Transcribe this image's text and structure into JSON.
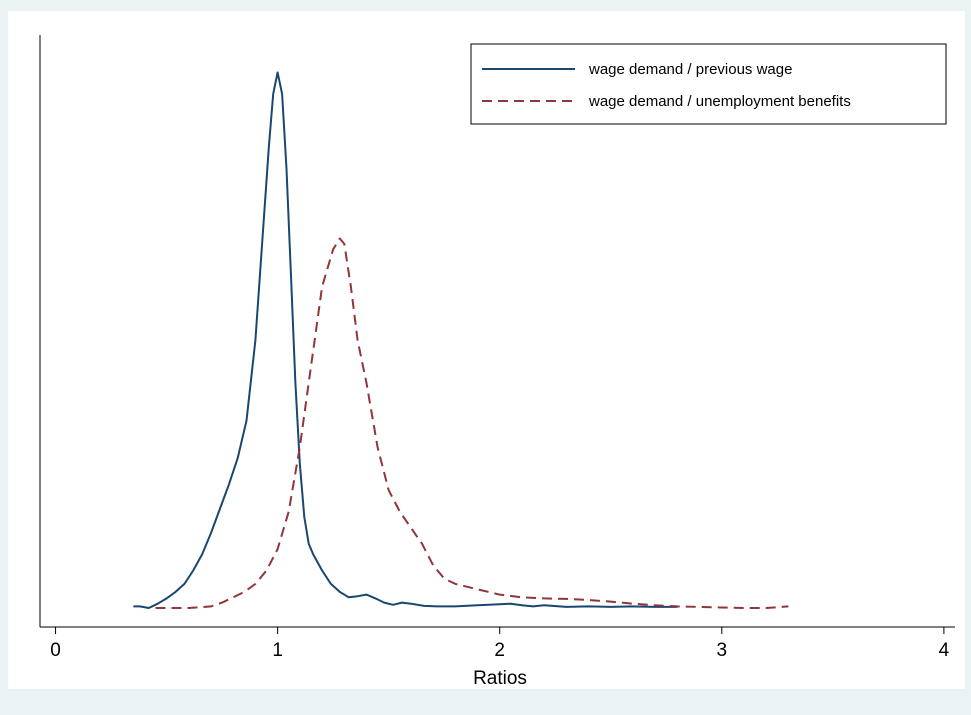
{
  "chart_data": {
    "type": "line",
    "title": "",
    "xlabel": "Ratios",
    "ylabel": "",
    "xlim": [
      -0.07,
      4.05
    ],
    "ylim": [
      0,
      1.07
    ],
    "x_ticks": [
      0,
      1,
      2,
      3,
      4
    ],
    "x_tick_labels": [
      "0",
      "1",
      "2",
      "3",
      "4"
    ],
    "y_axis_ticks_shown": false,
    "grid": false,
    "legend_position": "top-right",
    "colors": {
      "outer_background": "#eaf2f3",
      "plot_background": "#ffffff",
      "series_1": "#1a476f",
      "series_2": "#90353b"
    },
    "series": [
      {
        "name": "wage demand / previous wage",
        "line_style": "solid",
        "x": [
          0.35,
          0.38,
          0.42,
          0.46,
          0.5,
          0.54,
          0.58,
          0.62,
          0.66,
          0.7,
          0.74,
          0.78,
          0.82,
          0.86,
          0.9,
          0.93,
          0.96,
          0.98,
          1.0,
          1.02,
          1.04,
          1.06,
          1.08,
          1.1,
          1.12,
          1.14,
          1.16,
          1.2,
          1.24,
          1.28,
          1.32,
          1.36,
          1.4,
          1.44,
          1.48,
          1.52,
          1.56,
          1.6,
          1.66,
          1.72,
          1.8,
          1.9,
          2.0,
          2.05,
          2.1,
          2.15,
          2.2,
          2.3,
          2.4,
          2.5,
          2.6,
          2.7,
          2.8
        ],
        "y": [
          0.003,
          0.003,
          0.0,
          0.008,
          0.018,
          0.03,
          0.045,
          0.07,
          0.1,
          0.14,
          0.185,
          0.23,
          0.28,
          0.35,
          0.5,
          0.68,
          0.86,
          0.96,
          1.0,
          0.96,
          0.82,
          0.62,
          0.42,
          0.27,
          0.17,
          0.12,
          0.1,
          0.07,
          0.045,
          0.03,
          0.02,
          0.022,
          0.025,
          0.018,
          0.01,
          0.006,
          0.01,
          0.008,
          0.004,
          0.003,
          0.003,
          0.005,
          0.007,
          0.008,
          0.005,
          0.003,
          0.005,
          0.002,
          0.003,
          0.002,
          0.003,
          0.002,
          0.002
        ]
      },
      {
        "name": "wage demand / unemployment benefits",
        "line_style": "dashed",
        "x": [
          0.45,
          0.5,
          0.6,
          0.7,
          0.75,
          0.8,
          0.85,
          0.9,
          0.95,
          1.0,
          1.05,
          1.1,
          1.15,
          1.2,
          1.25,
          1.28,
          1.3,
          1.33,
          1.36,
          1.4,
          1.45,
          1.5,
          1.55,
          1.6,
          1.65,
          1.7,
          1.75,
          1.8,
          1.9,
          2.0,
          2.1,
          2.2,
          2.3,
          2.4,
          2.5,
          2.6,
          2.7,
          2.8,
          2.9,
          3.0,
          3.1,
          3.2,
          3.3
        ],
        "y": [
          0.0,
          0.0,
          0.0,
          0.003,
          0.01,
          0.02,
          0.03,
          0.045,
          0.07,
          0.11,
          0.18,
          0.3,
          0.45,
          0.6,
          0.67,
          0.69,
          0.68,
          0.6,
          0.5,
          0.42,
          0.3,
          0.22,
          0.18,
          0.15,
          0.12,
          0.08,
          0.055,
          0.045,
          0.035,
          0.025,
          0.02,
          0.018,
          0.017,
          0.015,
          0.012,
          0.008,
          0.005,
          0.003,
          0.002,
          0.001,
          0.0,
          0.0,
          0.003
        ]
      }
    ]
  }
}
